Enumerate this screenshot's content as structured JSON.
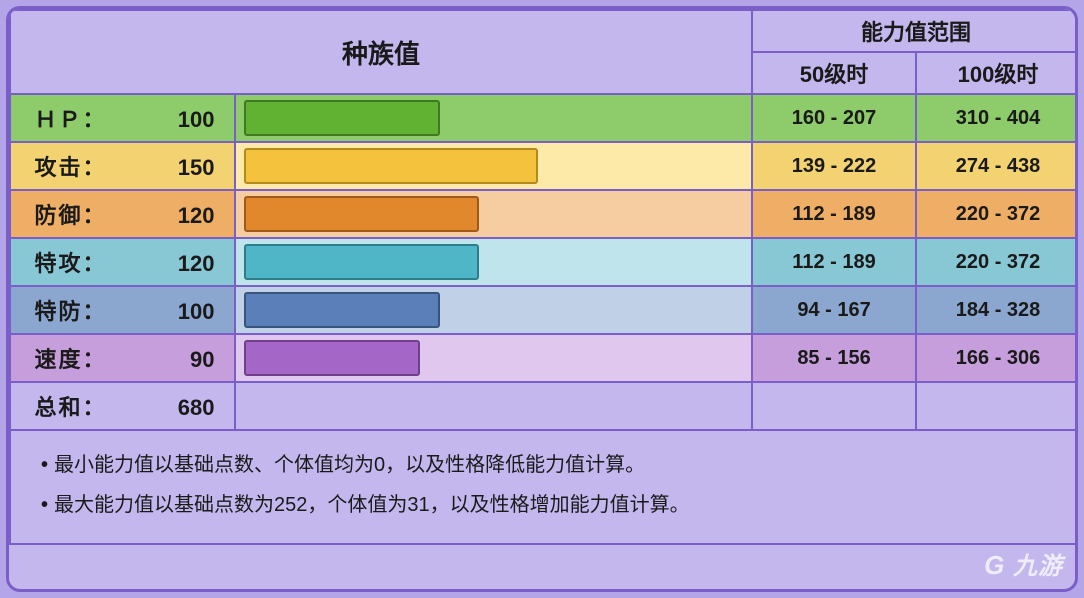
{
  "layout": {
    "bar_max_value": 255,
    "col_label_w": 225,
    "col_bar_w": 517,
    "col_range_w": 164
  },
  "header": {
    "base_stats": "种族值",
    "range_title": "能力值范围",
    "at50": "50级时",
    "at100": "100级时"
  },
  "stats": [
    {
      "key": "hp",
      "label": "ＨＰ：",
      "value": 100,
      "r50": "160 - 207",
      "r100": "310 - 404",
      "row_bg": "#8ecb6a",
      "track_bg": "#8ecb6a",
      "fill": "#61b133",
      "fill_border": "#3f7a22",
      "range_bg": "#8ecb6a"
    },
    {
      "key": "atk",
      "label": "攻击：",
      "value": 150,
      "r50": "139 - 222",
      "r100": "274 - 438",
      "row_bg": "#f2d271",
      "track_bg": "#fde9a8",
      "fill": "#f4c23c",
      "fill_border": "#b38a1e",
      "range_bg": "#f2d271"
    },
    {
      "key": "def",
      "label": "防御：",
      "value": 120,
      "r50": "112 - 189",
      "r100": "220 - 372",
      "row_bg": "#efae66",
      "track_bg": "#f6cda0",
      "fill": "#e1872c",
      "fill_border": "#a05a17",
      "range_bg": "#efae66"
    },
    {
      "key": "spatk",
      "label": "特攻：",
      "value": 120,
      "r50": "112 - 189",
      "r100": "220 - 372",
      "row_bg": "#88c7d4",
      "track_bg": "#bfe4ec",
      "fill": "#4fb6c8",
      "fill_border": "#2b7e8c",
      "range_bg": "#88c7d4"
    },
    {
      "key": "spdef",
      "label": "特防：",
      "value": 100,
      "r50": "94 - 167",
      "r100": "184 - 328",
      "row_bg": "#8ba6cf",
      "track_bg": "#c0d0e6",
      "fill": "#5b7fb8",
      "fill_border": "#39547f",
      "range_bg": "#8ba6cf"
    },
    {
      "key": "spd",
      "label": "速度：",
      "value": 90,
      "r50": "85 - 156",
      "r100": "166 - 306",
      "row_bg": "#c79edc",
      "track_bg": "#e0c7ee",
      "fill": "#a466c7",
      "fill_border": "#6f3f8c",
      "range_bg": "#c79edc"
    }
  ],
  "total": {
    "label": "总和：",
    "value": 680,
    "row_bg": "#c3b7ee"
  },
  "footer": {
    "line1": "最小能力值以基础点数、个体值均为0，以及性格降低能力值计算。",
    "line2": "最大能力值以基础点数为252，个体值为31，以及性格增加能力值计算。"
  },
  "watermark": "九游"
}
